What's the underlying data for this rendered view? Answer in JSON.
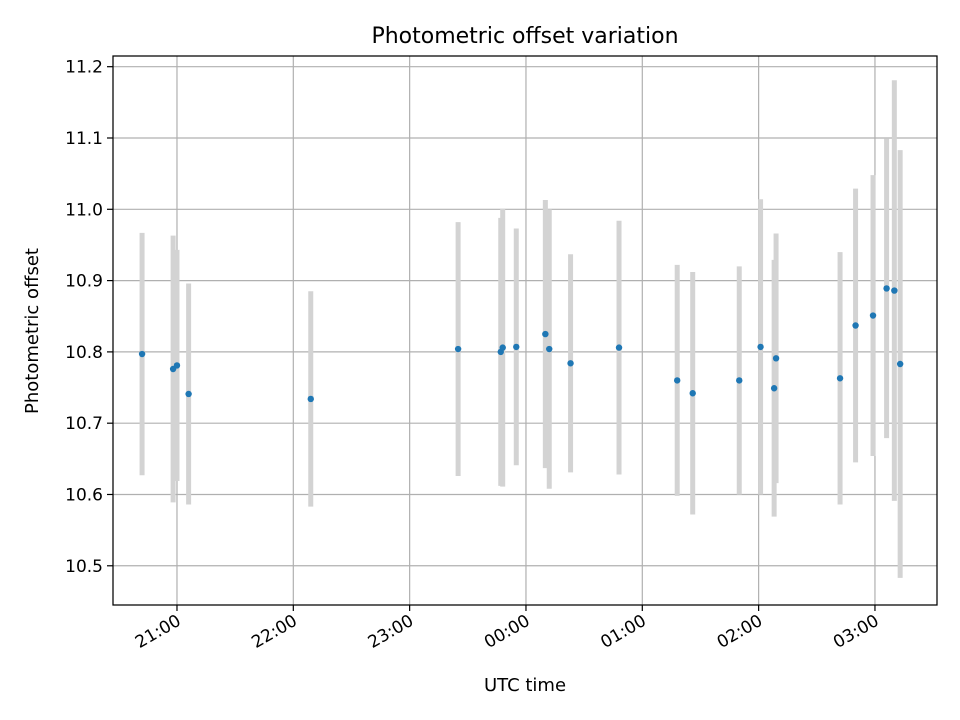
{
  "chart_data": {
    "type": "scatter",
    "title": "Photometric offset variation",
    "xlabel": "UTC time",
    "ylabel": "Photometric offset",
    "grid": true,
    "legend": "none",
    "xlim": [
      "2023-01-01T20:27",
      "2023-01-02T03:32"
    ],
    "ylim": [
      10.445,
      11.215
    ],
    "xticks": [
      {
        "t": "2023-01-01T21:00",
        "label": "21:00"
      },
      {
        "t": "2023-01-01T22:00",
        "label": "22:00"
      },
      {
        "t": "2023-01-01T23:00",
        "label": "23:00"
      },
      {
        "t": "2023-01-02T00:00",
        "label": "00:00"
      },
      {
        "t": "2023-01-02T01:00",
        "label": "01:00"
      },
      {
        "t": "2023-01-02T02:00",
        "label": "02:00"
      },
      {
        "t": "2023-01-02T03:00",
        "label": "03:00"
      }
    ],
    "yticks": [
      10.5,
      10.6,
      10.7,
      10.8,
      10.9,
      11.0,
      11.1,
      11.2
    ],
    "colors": {
      "marker": "#1f77b4",
      "errorbar": "#d3d3d3",
      "grid": "#b0b0b0"
    },
    "points": [
      {
        "t": "2023-01-01T20:42",
        "y": 10.797,
        "err": 0.17
      },
      {
        "t": "2023-01-01T20:58",
        "y": 10.776,
        "err": 0.187
      },
      {
        "t": "2023-01-01T21:00",
        "y": 10.781,
        "err": 0.162
      },
      {
        "t": "2023-01-01T21:06",
        "y": 10.741,
        "err": 0.155
      },
      {
        "t": "2023-01-01T22:09",
        "y": 10.734,
        "err": 0.151
      },
      {
        "t": "2023-01-01T23:25",
        "y": 10.804,
        "err": 0.178
      },
      {
        "t": "2023-01-01T23:47",
        "y": 10.8,
        "err": 0.188
      },
      {
        "t": "2023-01-01T23:48",
        "y": 10.806,
        "err": 0.195
      },
      {
        "t": "2023-01-01T23:55",
        "y": 10.807,
        "err": 0.166
      },
      {
        "t": "2023-01-02T00:10",
        "y": 10.825,
        "err": 0.188
      },
      {
        "t": "2023-01-02T00:12",
        "y": 10.804,
        "err": 0.196
      },
      {
        "t": "2023-01-02T00:23",
        "y": 10.784,
        "err": 0.153
      },
      {
        "t": "2023-01-02T00:48",
        "y": 10.806,
        "err": 0.178
      },
      {
        "t": "2023-01-02T01:18",
        "y": 10.76,
        "err": 0.162
      },
      {
        "t": "2023-01-02T01:26",
        "y": 10.742,
        "err": 0.17
      },
      {
        "t": "2023-01-02T01:50",
        "y": 10.76,
        "err": 0.16
      },
      {
        "t": "2023-01-02T02:01",
        "y": 10.807,
        "err": 0.207
      },
      {
        "t": "2023-01-02T02:08",
        "y": 10.749,
        "err": 0.18
      },
      {
        "t": "2023-01-02T02:09",
        "y": 10.791,
        "err": 0.175
      },
      {
        "t": "2023-01-02T02:42",
        "y": 10.763,
        "err": 0.177
      },
      {
        "t": "2023-01-02T02:50",
        "y": 10.837,
        "err": 0.192
      },
      {
        "t": "2023-01-02T02:59",
        "y": 10.851,
        "err": 0.197
      },
      {
        "t": "2023-01-02T03:06",
        "y": 10.889,
        "err": 0.21
      },
      {
        "t": "2023-01-02T03:10",
        "y": 10.886,
        "err": 0.295
      },
      {
        "t": "2023-01-02T03:13",
        "y": 10.783,
        "err": 0.3
      }
    ]
  }
}
